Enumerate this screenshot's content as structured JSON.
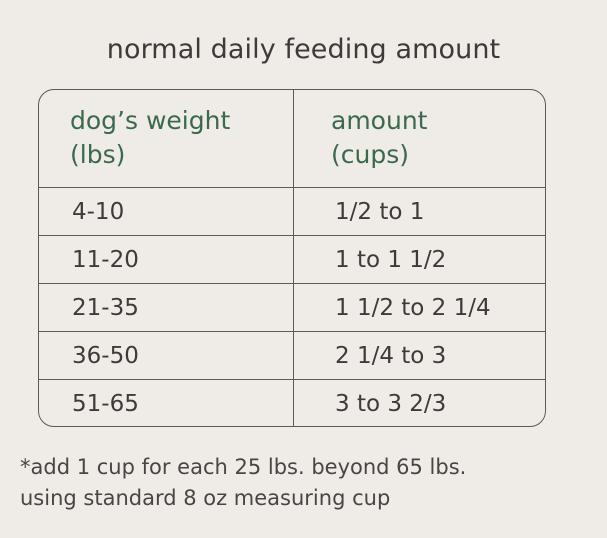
{
  "title": "normal daily feeding amount",
  "table": {
    "headers": {
      "weight_line1": "dog’s weight",
      "weight_line2": "(lbs)",
      "amount_line1": "amount",
      "amount_line2": "(cups)"
    },
    "rows": [
      {
        "weight": "4-10",
        "amount": "1/2 to 1"
      },
      {
        "weight": "11-20",
        "amount": "1 to 1 1/2"
      },
      {
        "weight": "21-35",
        "amount": "1 1/2 to 2 1/4"
      },
      {
        "weight": "36-50",
        "amount": "2 1/4 to 3"
      },
      {
        "weight": "51-65",
        "amount": "3 to 3 2/3"
      }
    ]
  },
  "footnote": {
    "line1": "*add 1 cup for each 25 lbs. beyond 65 lbs.",
    "line2": "using standard 8 oz measuring cup"
  },
  "colors": {
    "background": "#efebe7",
    "header_text": "#3b6a4b",
    "body_text": "#3f3a38",
    "lines": "#5e5957"
  }
}
